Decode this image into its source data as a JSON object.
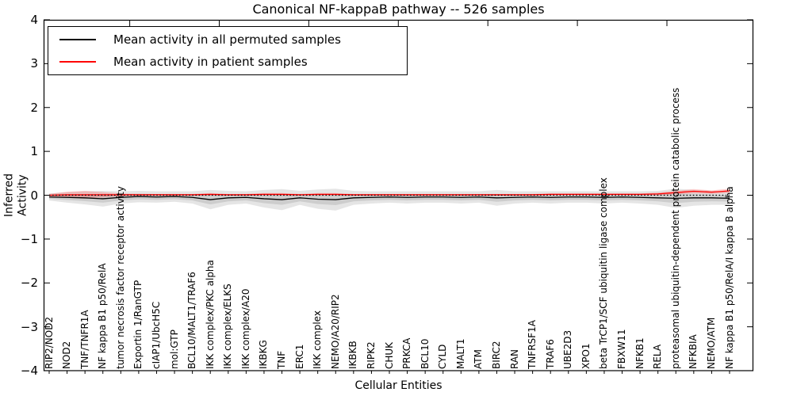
{
  "title": "Canonical NF-kappaB pathway -- 526 samples",
  "colors": {
    "permuted_line": "#000000",
    "patient_line": "#ff0000",
    "permuted_band": "rgba(0,0,0,0.10)",
    "patient_band": "rgba(255,0,0,0.20)",
    "axis": "#000000",
    "background": "#ffffff"
  },
  "chart_data": {
    "type": "line",
    "title": "Canonical NF-kappaB pathway -- 526 samples",
    "xlabel": "Cellular Entities",
    "ylabel": "Inferred Activity",
    "ylim": [
      -4,
      4
    ],
    "yticks": [
      4,
      3,
      2,
      1,
      0,
      -1,
      -2,
      -3,
      -4
    ],
    "grid": false,
    "legend_position": "upper left",
    "zero_line": {
      "style": "dotted",
      "color": "#000000",
      "y": 0
    },
    "categories": [
      "RIP2/NOD2",
      "NOD2",
      "TNF/TNFR1A",
      "NF kappa B1 p50/RelA",
      "tumor necrosis factor receptor activity",
      "Exportin 1/RanGTP",
      "cIAP1/UbcH5C",
      "mol:GTP",
      "BCL10/MALT1/TRAF6",
      "IKK complex/PKC alpha",
      "IKK complex/ELKS",
      "IKK complex/A20",
      "IKBKG",
      "TNF",
      "ERC1",
      "IKK complex",
      "NEMO/A20/RIP2",
      "IKBKB",
      "RIPK2",
      "CHUK",
      "PRKCA",
      "BCL10",
      "CYLD",
      "MALT1",
      "ATM",
      "BIRC2",
      "RAN",
      "TNFRSF1A",
      "TRAF6",
      "UBE2D3",
      "XPO1",
      "beta TrCP1/SCF ubiquitin ligase complex",
      "FBXW11",
      "NFKB1",
      "RELA",
      "proteasomal ubiquitin-dependent protein catabolic process",
      "NFKBIA",
      "NEMO/ATM",
      "NF kappa B1 p50/RelA/I kappa B alpha"
    ],
    "series": [
      {
        "name": "Mean activity in all permuted samples",
        "color": "#000000",
        "band_color": "rgba(0,0,0,0.10)",
        "values": [
          -0.04,
          -0.05,
          -0.06,
          -0.08,
          -0.05,
          -0.03,
          -0.04,
          -0.03,
          -0.05,
          -0.1,
          -0.06,
          -0.05,
          -0.08,
          -0.1,
          -0.06,
          -0.09,
          -0.1,
          -0.06,
          -0.05,
          -0.04,
          -0.05,
          -0.04,
          -0.04,
          -0.05,
          -0.04,
          -0.06,
          -0.05,
          -0.04,
          -0.05,
          -0.04,
          -0.04,
          -0.05,
          -0.04,
          -0.05,
          -0.06,
          -0.07,
          -0.06,
          -0.06,
          -0.07
        ],
        "band": [
          0.08,
          0.12,
          0.15,
          0.18,
          0.14,
          0.13,
          0.13,
          0.12,
          0.14,
          0.22,
          0.16,
          0.14,
          0.2,
          0.24,
          0.16,
          0.22,
          0.25,
          0.16,
          0.14,
          0.13,
          0.14,
          0.13,
          0.13,
          0.14,
          0.13,
          0.18,
          0.14,
          0.13,
          0.14,
          0.13,
          0.13,
          0.14,
          0.13,
          0.14,
          0.16,
          0.22,
          0.18,
          0.16,
          0.15
        ]
      },
      {
        "name": "Mean activity in patient samples",
        "color": "#ff0000",
        "band_color": "rgba(255,0,0,0.20)",
        "values": [
          0.0,
          0.01,
          0.01,
          0.01,
          0.01,
          0.01,
          0.01,
          0.01,
          0.01,
          0.02,
          0.01,
          0.01,
          0.02,
          0.02,
          0.01,
          0.02,
          0.02,
          0.01,
          0.01,
          0.01,
          0.01,
          0.01,
          0.01,
          0.01,
          0.01,
          0.01,
          0.01,
          0.01,
          0.02,
          0.02,
          0.02,
          0.02,
          0.02,
          0.02,
          0.03,
          0.06,
          0.09,
          0.07,
          0.1
        ],
        "band": [
          0.03,
          0.07,
          0.09,
          0.06,
          0.03,
          0.02,
          0.02,
          0.02,
          0.02,
          0.03,
          0.02,
          0.02,
          0.03,
          0.03,
          0.02,
          0.03,
          0.03,
          0.02,
          0.02,
          0.02,
          0.02,
          0.02,
          0.02,
          0.02,
          0.02,
          0.02,
          0.02,
          0.02,
          0.02,
          0.02,
          0.02,
          0.02,
          0.02,
          0.02,
          0.03,
          0.04,
          0.05,
          0.04,
          0.05
        ]
      }
    ]
  }
}
